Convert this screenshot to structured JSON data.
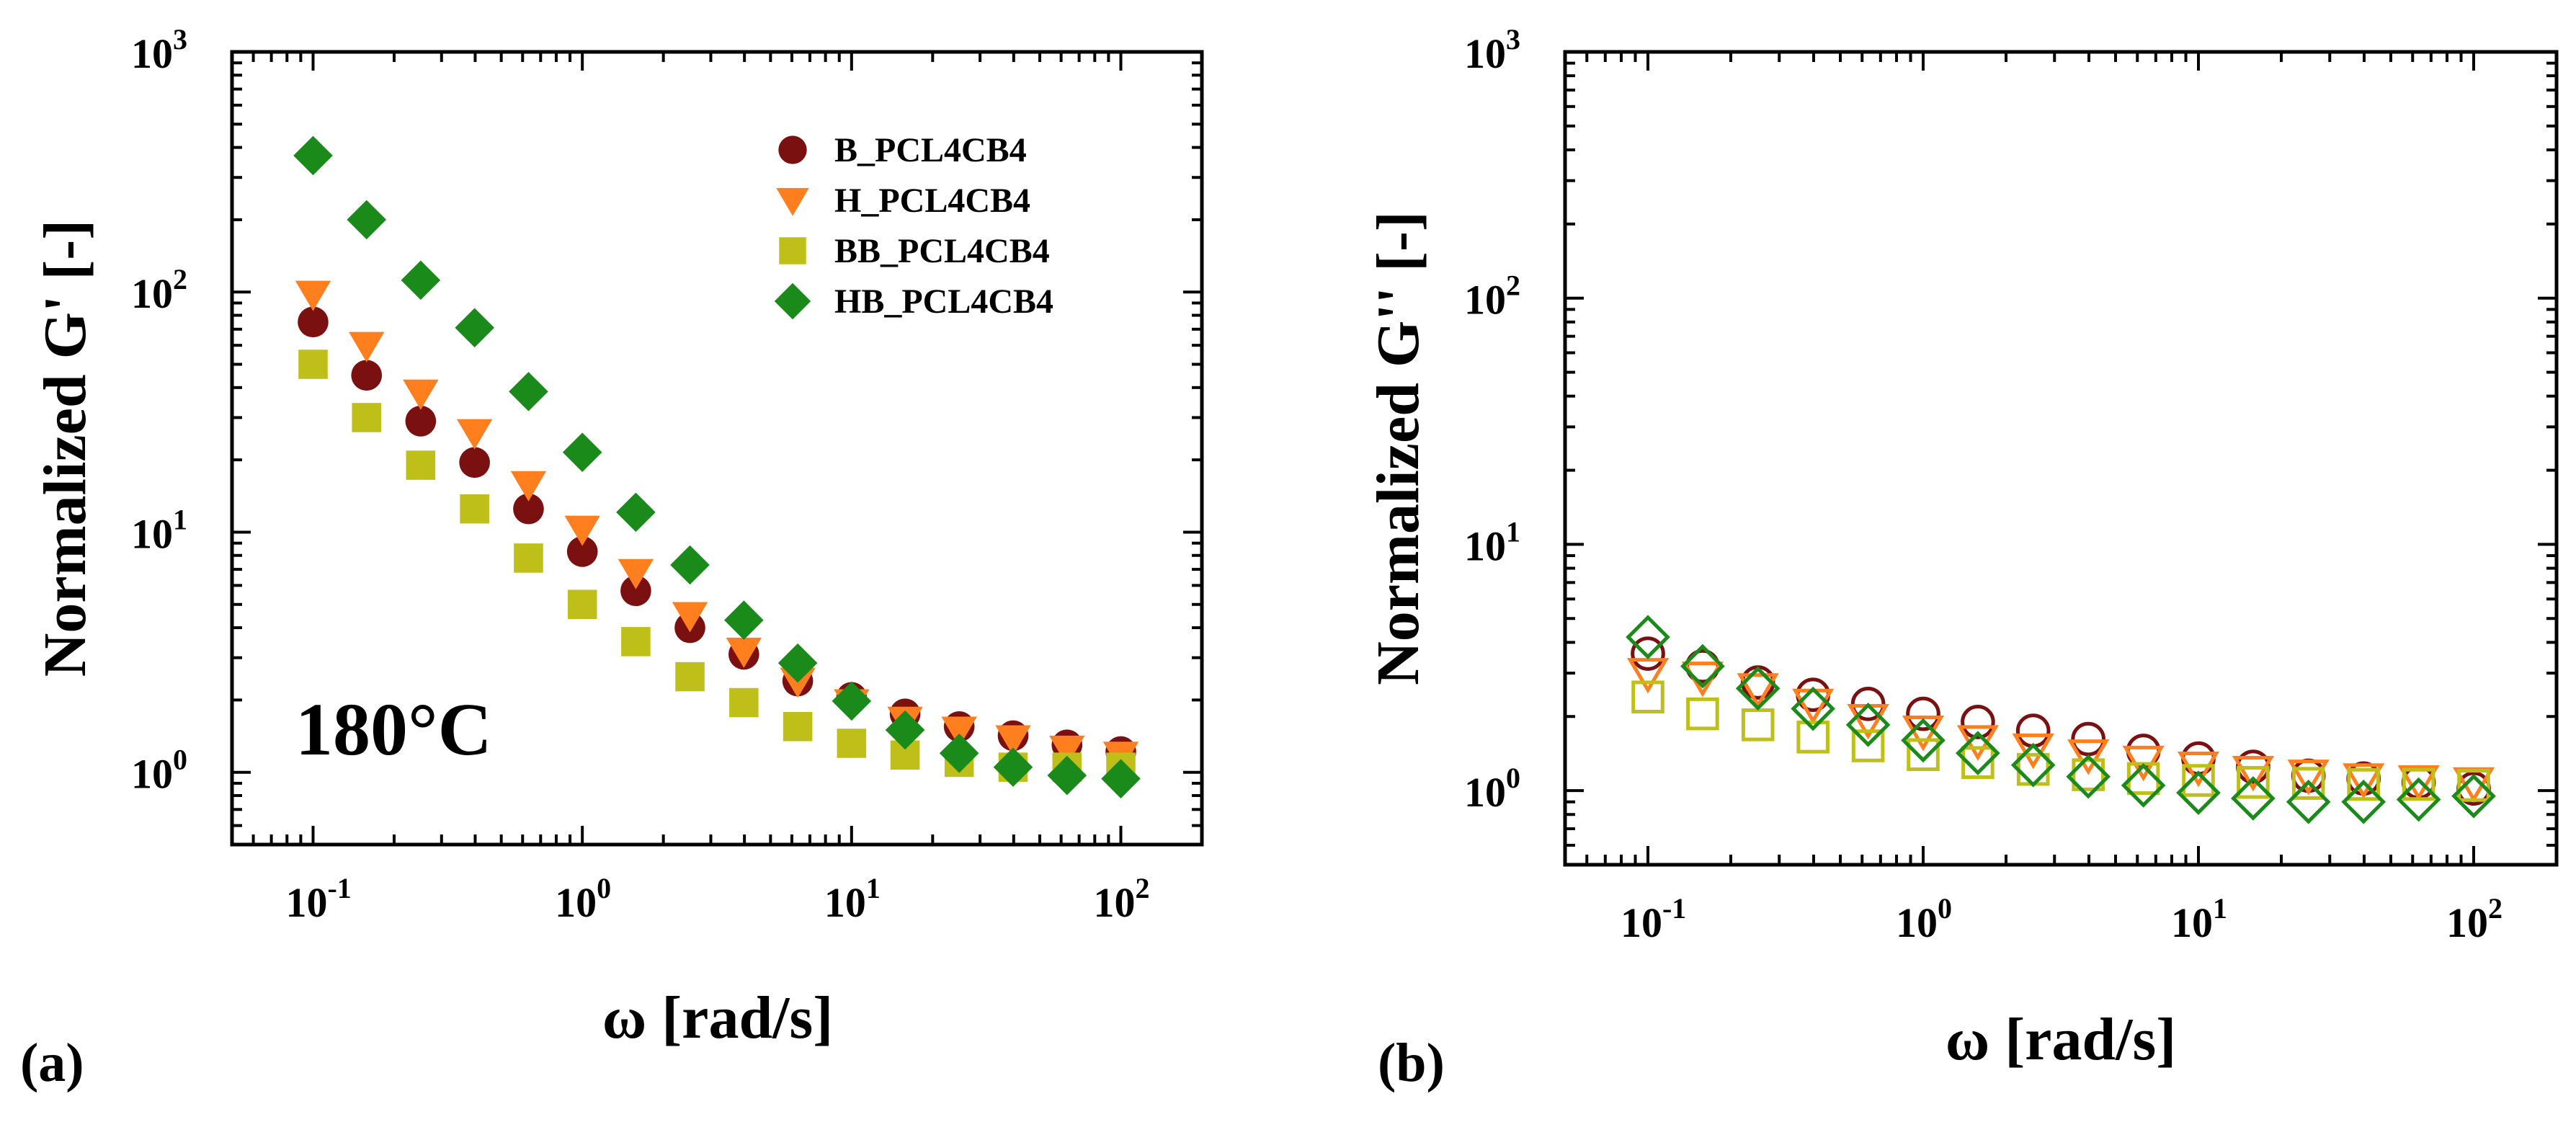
{
  "figure": {
    "panel_a_label": "(a)",
    "panel_b_label": "(b)",
    "annotation_a": "180°C"
  },
  "chart_data": [
    {
      "type": "scatter",
      "panel": "(a)",
      "xlabel": "ω [rad/s]",
      "ylabel": "Normalized G' [-]",
      "xscale": "log",
      "yscale": "log",
      "xlim": [
        0.05,
        200
      ],
      "ylim": [
        0.5,
        1000
      ],
      "x_ticks": [
        {
          "base": "10",
          "exp": "-1"
        },
        {
          "base": "10",
          "exp": "0"
        },
        {
          "base": "10",
          "exp": "1"
        },
        {
          "base": "10",
          "exp": "2"
        }
      ],
      "y_ticks": [
        {
          "base": "10",
          "exp": "0"
        },
        {
          "base": "10",
          "exp": "1"
        },
        {
          "base": "10",
          "exp": "2"
        },
        {
          "base": "10",
          "exp": "3"
        }
      ],
      "grid": false,
      "legend_position": "top-right",
      "annotation": "180°C",
      "x": [
        0.1,
        0.158,
        0.251,
        0.398,
        0.631,
        1.0,
        1.58,
        2.51,
        3.98,
        6.31,
        10.0,
        15.8,
        25.1,
        39.8,
        63.1,
        100.0
      ],
      "series": [
        {
          "name": "B_PCL4CB4",
          "marker": "circle",
          "fill": "filled",
          "color": "#7a1010",
          "values": [
            75,
            45,
            29,
            19.5,
            12.5,
            8.3,
            5.7,
            4.0,
            3.1,
            2.4,
            2.05,
            1.75,
            1.55,
            1.42,
            1.3,
            1.22
          ]
        },
        {
          "name": "H_PCL4CB4",
          "marker": "triangle-down",
          "fill": "filled",
          "color": "#ff7f1e",
          "values": [
            98,
            60,
            38,
            26,
            15.8,
            10.3,
            6.8,
            4.5,
            3.2,
            2.4,
            1.95,
            1.65,
            1.5,
            1.38,
            1.25,
            1.18
          ]
        },
        {
          "name": "BB_PCL4CB4",
          "marker": "square",
          "fill": "filled",
          "color": "#bfbf1a",
          "values": [
            50,
            30,
            19,
            12.5,
            7.8,
            5.0,
            3.5,
            2.5,
            1.95,
            1.55,
            1.32,
            1.18,
            1.1,
            1.05,
            1.05,
            1.05
          ]
        },
        {
          "name": "HB_PCL4CB4",
          "marker": "diamond",
          "fill": "filled",
          "color": "#1a8a1a",
          "values": [
            370,
            200,
            112,
            71,
            38.5,
            21.5,
            12.1,
            7.3,
            4.3,
            2.85,
            1.98,
            1.5,
            1.2,
            1.05,
            0.97,
            0.94
          ]
        }
      ]
    },
    {
      "type": "scatter",
      "panel": "(b)",
      "xlabel": "ω [rad/s]",
      "ylabel": "Normalized G'' [-]",
      "xscale": "log",
      "yscale": "log",
      "xlim": [
        0.05,
        200
      ],
      "ylim": [
        0.5,
        1000
      ],
      "x_ticks": [
        {
          "base": "10",
          "exp": "-1"
        },
        {
          "base": "10",
          "exp": "0"
        },
        {
          "base": "10",
          "exp": "1"
        },
        {
          "base": "10",
          "exp": "2"
        }
      ],
      "y_ticks": [
        {
          "base": "10",
          "exp": "0"
        },
        {
          "base": "10",
          "exp": "1"
        },
        {
          "base": "10",
          "exp": "2"
        },
        {
          "base": "10",
          "exp": "3"
        }
      ],
      "grid": false,
      "x": [
        0.1,
        0.158,
        0.251,
        0.398,
        0.631,
        1.0,
        1.58,
        2.51,
        3.98,
        6.31,
        10.0,
        15.8,
        25.1,
        39.8,
        63.1,
        100.0
      ],
      "series": [
        {
          "marker": "circle",
          "fill": "open",
          "color": "#7a1010",
          "values": [
            3.6,
            3.2,
            2.75,
            2.45,
            2.25,
            2.05,
            1.9,
            1.75,
            1.62,
            1.45,
            1.35,
            1.25,
            1.15,
            1.12,
            1.08,
            1.02
          ]
        },
        {
          "marker": "triangle-down",
          "fill": "open",
          "color": "#ff7f1e",
          "values": [
            3.0,
            2.9,
            2.6,
            2.25,
            1.95,
            1.75,
            1.6,
            1.48,
            1.4,
            1.32,
            1.25,
            1.2,
            1.16,
            1.12,
            1.1,
            1.08
          ]
        },
        {
          "marker": "square",
          "fill": "open",
          "color": "#bfbf1a",
          "values": [
            2.4,
            2.05,
            1.85,
            1.65,
            1.52,
            1.4,
            1.3,
            1.22,
            1.16,
            1.12,
            1.1,
            1.08,
            1.07,
            1.06,
            1.06,
            1.05
          ]
        },
        {
          "marker": "diamond",
          "fill": "open",
          "color": "#1a8a1a",
          "values": [
            4.2,
            3.2,
            2.6,
            2.15,
            1.85,
            1.6,
            1.42,
            1.27,
            1.14,
            1.05,
            0.98,
            0.93,
            0.9,
            0.9,
            0.92,
            0.95
          ]
        }
      ]
    }
  ]
}
